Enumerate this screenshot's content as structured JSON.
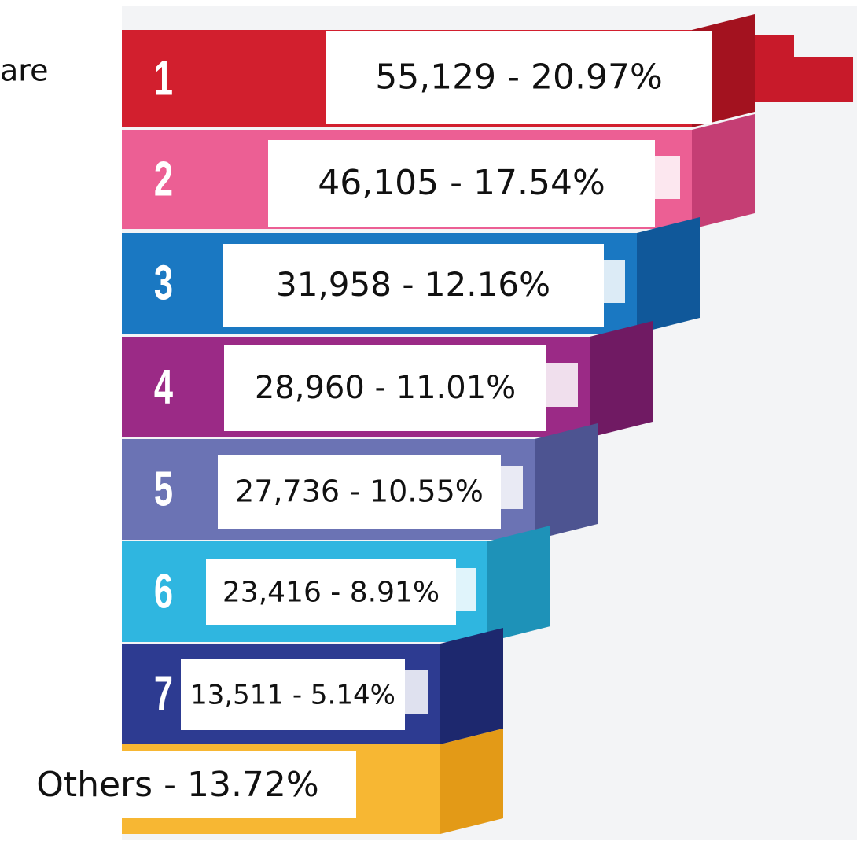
{
  "header": {
    "title": "are"
  },
  "rows": [
    {
      "rank": "1",
      "label": "55,129 - 20.97%",
      "color": "#d21f2e",
      "side": "#a3121f"
    },
    {
      "rank": "2",
      "label": "46,105 - 17.54%",
      "color": "#ec5f94",
      "side": "#c53e74"
    },
    {
      "rank": "3",
      "label": "31,958 - 12.16%",
      "color": "#1a78c2",
      "side": "#10589a"
    },
    {
      "rank": "4",
      "label": "28,960 - 11.01%",
      "color": "#9b2a86",
      "side": "#701a63"
    },
    {
      "rank": "5",
      "label": "27,736 - 10.55%",
      "color": "#6b73b4",
      "side": "#4d5491"
    },
    {
      "rank": "6",
      "label": "23,416 - 8.91%",
      "color": "#2fb6e0",
      "side": "#1e92b8"
    },
    {
      "rank": "7",
      "label": "13,511 - 5.14%",
      "color": "#2d3b91",
      "side": "#1d286e"
    }
  ],
  "others": {
    "label": "Others - 13.72%",
    "color": "#f7b733",
    "side": "#e39a17"
  }
}
